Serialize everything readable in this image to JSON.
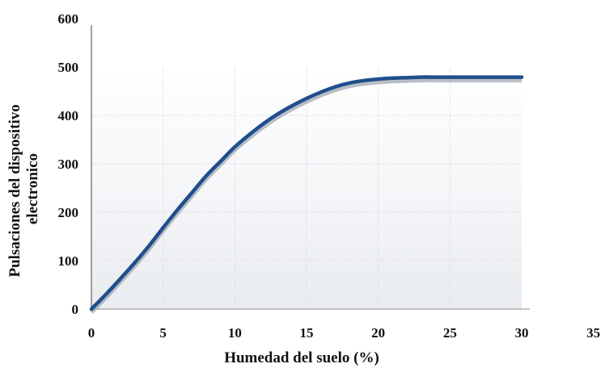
{
  "chart_data": {
    "type": "line",
    "xlabel": "Humedad del suelo (%)",
    "ylabel_lines": [
      "Pulsaciones del dispositivo",
      "electronico"
    ],
    "xlim": [
      0,
      35
    ],
    "ylim": [
      0,
      600
    ],
    "x_ticks": [
      "0",
      "5",
      "10",
      "15",
      "20",
      "25",
      "30",
      "35"
    ],
    "y_ticks": [
      "0",
      "100",
      "200",
      "300",
      "400",
      "500",
      "600"
    ],
    "grid": true,
    "series": [
      {
        "color": "#1f4e8c",
        "x": [
          0,
          1,
          2,
          3,
          4,
          5,
          6,
          7,
          8,
          9,
          10,
          11,
          12,
          13,
          14,
          15,
          16,
          17,
          18,
          19,
          20,
          21,
          22,
          23,
          24,
          25,
          26,
          27,
          28,
          29,
          30
        ],
        "y": [
          0,
          30,
          62,
          95,
          130,
          168,
          205,
          240,
          275,
          305,
          335,
          360,
          383,
          403,
          420,
          435,
          448,
          459,
          467,
          472,
          475,
          477,
          478,
          479,
          479,
          479,
          479,
          479,
          479,
          479,
          479
        ]
      }
    ]
  }
}
